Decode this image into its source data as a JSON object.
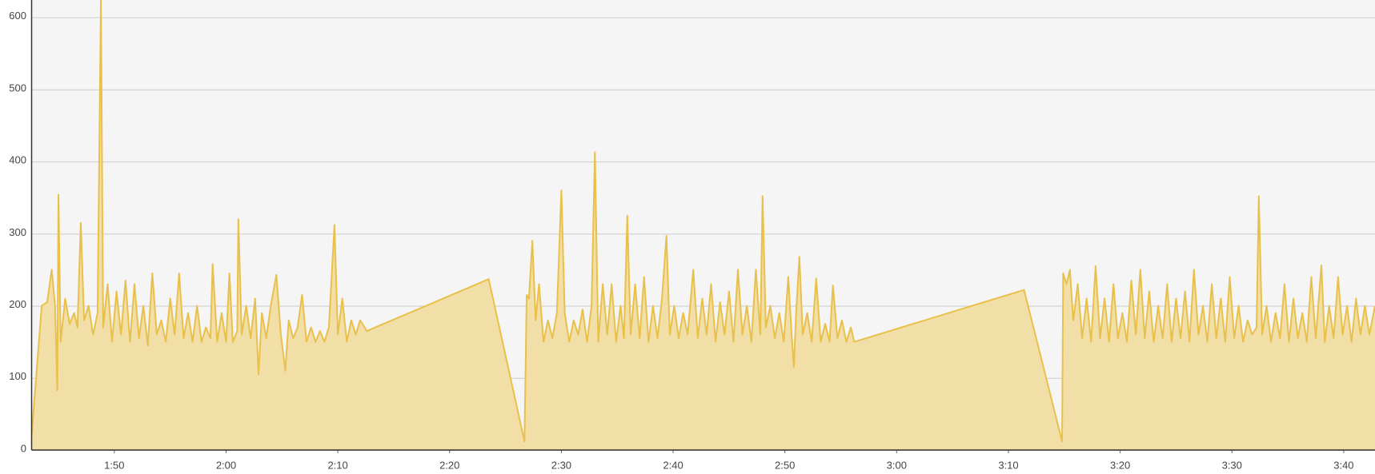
{
  "chart_data": {
    "type": "area",
    "color": "#e8c04a",
    "fill": "#f2dfa7",
    "grid": true,
    "xlim": [
      102.6,
      222.8
    ],
    "xticks": [
      {
        "value": 110,
        "label": "1:50"
      },
      {
        "value": 120,
        "label": "2:00"
      },
      {
        "value": 130,
        "label": "2:10"
      },
      {
        "value": 140,
        "label": "2:20"
      },
      {
        "value": 150,
        "label": "2:30"
      },
      {
        "value": 160,
        "label": "2:40"
      },
      {
        "value": 170,
        "label": "2:50"
      },
      {
        "value": 180,
        "label": "3:00"
      },
      {
        "value": 190,
        "label": "3:10"
      },
      {
        "value": 200,
        "label": "3:20"
      },
      {
        "value": 210,
        "label": "3:30"
      },
      {
        "value": 220,
        "label": "3:40"
      }
    ],
    "ylim": [
      0,
      624
    ],
    "yticks": [
      0,
      100,
      200,
      300,
      400,
      500,
      600
    ],
    "x": [
      102.6,
      103.5,
      104.0,
      104.4,
      104.7,
      104.9,
      105.0,
      105.2,
      105.6,
      106.0,
      106.4,
      106.7,
      107.0,
      107.3,
      107.7,
      108.1,
      108.5,
      108.8,
      109.0,
      109.4,
      109.8,
      110.2,
      110.6,
      111.0,
      111.4,
      111.8,
      112.2,
      112.6,
      113.0,
      113.4,
      113.8,
      114.2,
      114.6,
      115.0,
      115.4,
      115.8,
      116.2,
      116.6,
      117.0,
      117.4,
      117.8,
      118.2,
      118.6,
      118.8,
      119.2,
      119.6,
      120.0,
      120.3,
      120.6,
      121.0,
      121.1,
      121.4,
      121.8,
      122.2,
      122.6,
      122.9,
      123.2,
      123.6,
      124.0,
      124.5,
      124.9,
      125.3,
      125.6,
      126.0,
      126.4,
      126.8,
      127.2,
      127.6,
      128.0,
      128.4,
      128.8,
      129.2,
      129.7,
      130.0,
      130.4,
      130.8,
      131.2,
      131.6,
      132.0,
      132.6,
      143.5,
      146.7,
      146.9,
      147.1,
      147.4,
      147.7,
      148.0,
      148.4,
      148.8,
      149.2,
      149.6,
      150.0,
      150.3,
      150.7,
      151.1,
      151.5,
      151.9,
      152.3,
      152.7,
      153.0,
      153.3,
      153.7,
      154.1,
      154.5,
      154.9,
      155.3,
      155.6,
      155.9,
      156.2,
      156.6,
      157.0,
      157.4,
      157.8,
      158.2,
      158.6,
      159.0,
      159.4,
      159.7,
      160.1,
      160.5,
      160.9,
      161.3,
      161.8,
      162.2,
      162.6,
      163.0,
      163.4,
      163.8,
      164.2,
      164.6,
      165.0,
      165.4,
      165.8,
      166.2,
      166.6,
      167.0,
      167.4,
      167.8,
      168.0,
      168.3,
      168.7,
      169.1,
      169.5,
      169.9,
      170.3,
      170.6,
      170.8,
      171.0,
      171.3,
      171.6,
      172.0,
      172.4,
      172.8,
      173.2,
      173.6,
      174.0,
      174.3,
      174.7,
      175.1,
      175.5,
      175.9,
      176.2,
      191.4,
      194.8,
      194.9,
      195.2,
      195.5,
      195.8,
      196.2,
      196.6,
      197.0,
      197.4,
      197.8,
      198.2,
      198.6,
      199.0,
      199.4,
      199.8,
      200.2,
      200.6,
      201.0,
      201.4,
      201.8,
      202.2,
      202.6,
      203.0,
      203.4,
      203.8,
      204.2,
      204.6,
      205.0,
      205.4,
      205.8,
      206.2,
      206.6,
      207.0,
      207.4,
      207.8,
      208.2,
      208.6,
      209.0,
      209.4,
      209.8,
      210.2,
      210.6,
      211.0,
      211.4,
      211.8,
      212.2,
      212.4,
      212.7,
      213.1,
      213.5,
      213.9,
      214.3,
      214.7,
      215.1,
      215.5,
      215.9,
      216.3,
      216.7,
      217.1,
      217.5,
      218.0,
      218.3,
      218.7,
      219.1,
      219.5,
      219.9,
      220.3,
      220.7,
      221.1,
      221.5,
      221.9,
      222.3,
      222.8
    ],
    "values": [
      20,
      200,
      205,
      250,
      200,
      83,
      354,
      150,
      210,
      175,
      190,
      170,
      315,
      180,
      200,
      160,
      190,
      625,
      170,
      230,
      150,
      220,
      160,
      235,
      150,
      230,
      155,
      200,
      145,
      245,
      160,
      180,
      150,
      210,
      160,
      245,
      155,
      190,
      150,
      200,
      150,
      170,
      155,
      258,
      150,
      190,
      150,
      245,
      150,
      165,
      320,
      160,
      200,
      155,
      210,
      105,
      190,
      155,
      200,
      243,
      160,
      110,
      180,
      155,
      170,
      215,
      150,
      170,
      150,
      165,
      150,
      170,
      312,
      160,
      210,
      150,
      180,
      160,
      180,
      165,
      237,
      12,
      215,
      210,
      290,
      180,
      230,
      150,
      180,
      155,
      190,
      360,
      190,
      150,
      180,
      160,
      195,
      150,
      200,
      413,
      150,
      230,
      160,
      230,
      150,
      200,
      155,
      325,
      160,
      230,
      155,
      240,
      150,
      200,
      155,
      210,
      297,
      160,
      200,
      155,
      190,
      160,
      250,
      155,
      210,
      160,
      230,
      150,
      205,
      160,
      220,
      150,
      250,
      160,
      200,
      150,
      250,
      160,
      352,
      170,
      200,
      155,
      190,
      150,
      240,
      160,
      115,
      190,
      268,
      160,
      190,
      150,
      238,
      150,
      175,
      150,
      228,
      155,
      180,
      150,
      170,
      150,
      222,
      12,
      245,
      230,
      250,
      180,
      230,
      155,
      210,
      150,
      255,
      155,
      210,
      150,
      230,
      155,
      190,
      150,
      235,
      160,
      250,
      155,
      220,
      150,
      200,
      155,
      230,
      150,
      210,
      155,
      220,
      150,
      250,
      160,
      200,
      150,
      230,
      155,
      210,
      150,
      240,
      155,
      200,
      150,
      180,
      160,
      170,
      352,
      160,
      200,
      150,
      190,
      155,
      230,
      150,
      210,
      155,
      190,
      150,
      240,
      155,
      256,
      150,
      200,
      155,
      240,
      160,
      200,
      150,
      210,
      160,
      200,
      160,
      200
    ]
  }
}
